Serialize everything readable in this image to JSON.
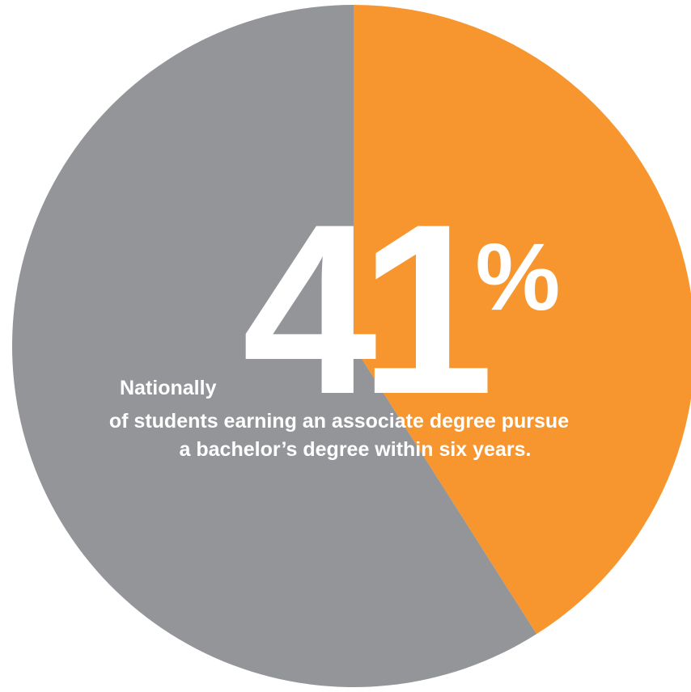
{
  "chart_data": {
    "type": "pie",
    "slices": [
      {
        "label": "pursue a bachelor's degree",
        "value": 41,
        "color": "#f7962e"
      },
      {
        "label": "",
        "value": 59,
        "color": "#939598"
      }
    ],
    "start": "12 o'clock",
    "direction": "clockwise",
    "big_number": "41",
    "percent_sign": "%",
    "caption_lines": [
      "Nationally",
      "of students earning an associate degree pursue",
      "a bachelor’s degree within six years."
    ]
  }
}
